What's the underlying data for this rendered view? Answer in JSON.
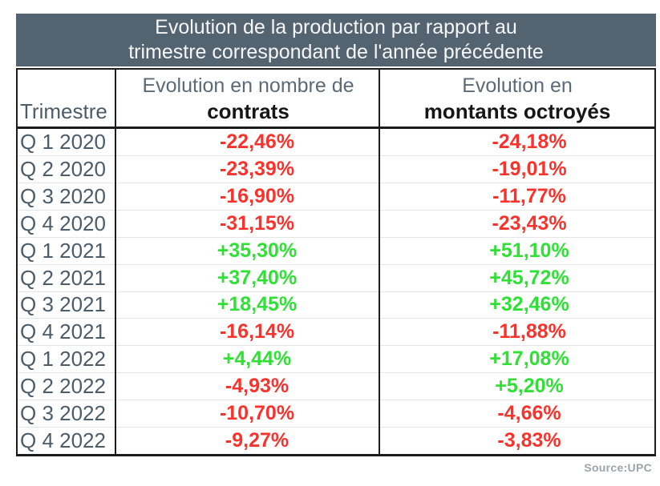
{
  "title": {
    "line1": "Evolution de la production par rapport au",
    "line2": "trimestre correspondant de l'année précédente"
  },
  "header": {
    "trimestre": "Trimestre",
    "contracts_line1": "Evolution en nombre de",
    "contracts_line2": "contrats",
    "amounts_line1": "Evolution en",
    "amounts_line2": "montants octroyés"
  },
  "source": "Source:UPC",
  "colors": {
    "title_bg": "#546370",
    "positive": "#2fe134",
    "negative": "#fa322c",
    "label": "#4d5c69",
    "muted": "#9ca4ab",
    "line": "#1c1c1c"
  },
  "chart_data": {
    "type": "table",
    "title": "Evolution de la production par rapport au trimestre correspondant de l'année précédente",
    "columns": [
      "Trimestre",
      "Evolution en nombre de contrats",
      "Evolution en montants octroyés"
    ],
    "rows": [
      {
        "trimestre": "Q 1 2020",
        "contrats": "-22,46%",
        "montants": "-24,18%"
      },
      {
        "trimestre": "Q 2 2020",
        "contrats": "-23,39%",
        "montants": "-19,01%"
      },
      {
        "trimestre": "Q 3 2020",
        "contrats": "-16,90%",
        "montants": "-11,77%"
      },
      {
        "trimestre": "Q 4 2020",
        "contrats": "-31,15%",
        "montants": "-23,43%"
      },
      {
        "trimestre": "Q 1 2021",
        "contrats": "+35,30%",
        "montants": "+51,10%"
      },
      {
        "trimestre": "Q 2 2021",
        "contrats": "+37,40%",
        "montants": "+45,72%"
      },
      {
        "trimestre": "Q 3 2021",
        "contrats": "+18,45%",
        "montants": "+32,46%"
      },
      {
        "trimestre": "Q 4 2021",
        "contrats": "-16,14%",
        "montants": "-11,88%"
      },
      {
        "trimestre": "Q 1 2022",
        "contrats": "+4,44%",
        "montants": "+17,08%"
      },
      {
        "trimestre": "Q 2 2022",
        "contrats": "-4,93%",
        "montants": "+5,20%"
      },
      {
        "trimestre": "Q 3 2022",
        "contrats": "-10,70%",
        "montants": "-4,66%"
      },
      {
        "trimestre": "Q 4 2022",
        "contrats": "-9,27%",
        "montants": "-3,83%"
      }
    ],
    "source": "Source:UPC",
    "layout": {
      "grid": "black column separators, light gray row separators",
      "value_colors": "green = positive, red = negative"
    }
  }
}
